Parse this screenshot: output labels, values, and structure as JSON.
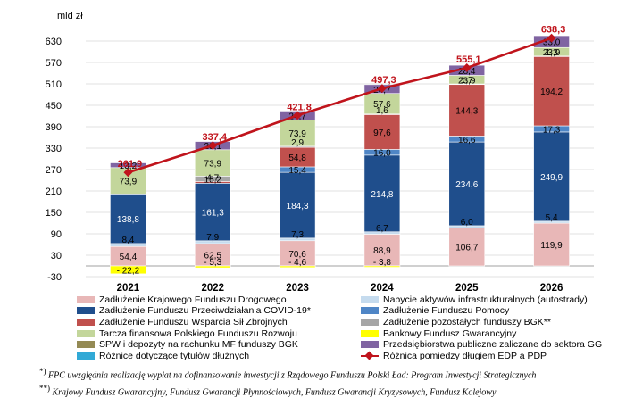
{
  "chart_data": {
    "type": "bar",
    "stacked": true,
    "ylabel": "mld zł",
    "ylim": [
      -30,
      660
    ],
    "yticks": [
      -30,
      30,
      90,
      150,
      210,
      270,
      330,
      390,
      450,
      510,
      570,
      630
    ],
    "grid": true,
    "categories": [
      "2021",
      "2022",
      "2023",
      "2024",
      "2025",
      "2026"
    ],
    "series": [
      {
        "name": "Zadłużenie Krajowego Funduszu Drogowego",
        "color": "#e8b7b7",
        "values": [
          54.4,
          62.5,
          70.6,
          88.9,
          106.7,
          119.9
        ]
      },
      {
        "name": "Nabycie aktywów infrastrukturalnych (autostrady)",
        "color": "#c5dbee",
        "values": [
          8.4,
          7.9,
          7.3,
          6.7,
          6.0,
          5.4
        ]
      },
      {
        "name": "Zadłużenie Funduszu Przeciwdziałania COVID-19*",
        "color": "#1f4e8c",
        "values": [
          138.8,
          161.3,
          184.3,
          214.8,
          234.6,
          249.9
        ]
      },
      {
        "name": "Zadłużenie Funduszu Pomocy",
        "color": "#4f86c6",
        "values": [
          0,
          0,
          15.4,
          16.0,
          16.6,
          17.3
        ]
      },
      {
        "name": "Zadłużenie Funduszu Wsparcia Sił Zbrojnych",
        "color": "#c0504d",
        "values": [
          0,
          4.7,
          54.8,
          97.6,
          144.3,
          194.2
        ]
      },
      {
        "name": "Zadłużenie pozostałych funduszy BGK**",
        "color": "#a6a6a6",
        "values": [
          0,
          15.2,
          2.9,
          1.6,
          1.7,
          1.3
        ]
      },
      {
        "name": "Tarcza finansowa Polskiego Funduszu Rozwoju",
        "color": "#c3d69b",
        "values": [
          73.9,
          73.9,
          73.9,
          57.6,
          23.9,
          23.9
        ]
      },
      {
        "name": "Bankowy Fundusz Gwarancyjny",
        "color": "#ffff00",
        "values": [
          -22.2,
          -5.3,
          -4.6,
          -3.8,
          0,
          0
        ]
      },
      {
        "name": "SPW i depozyty na rachunku MF funduszy BGK",
        "color": "#948a54",
        "values": [
          0,
          0,
          0,
          0,
          0,
          0
        ]
      },
      {
        "name": "Przedsiębiorstwa publiczne zaliczane do sektora GG",
        "color": "#8064a2",
        "values": [
          13.2,
          23.1,
          24.7,
          24.7,
          28.4,
          33.0
        ]
      },
      {
        "name": "Różnice dotyczące tytułów dłużnych",
        "color": "#31a9d6",
        "values": [
          0,
          0,
          0,
          0,
          0,
          0
        ]
      }
    ],
    "line": {
      "name": "Różnica pomiedzy długiem EDP a PDP",
      "color": "#c0141c",
      "values": [
        261.9,
        337.4,
        421.8,
        497.3,
        555.1,
        638.3
      ]
    },
    "data_labels": [
      [
        [
          "54,4",
          54.4
        ],
        [
          "8,4",
          8.4
        ],
        [
          "138,8",
          138.8
        ],
        [
          "73,9",
          73.9
        ],
        [
          "- 22,2",
          -22.2
        ],
        [
          "13,2",
          13.2
        ]
      ],
      [
        [
          "62,5",
          62.5
        ],
        [
          "7,9",
          7.9
        ],
        [
          "161,3",
          161.3
        ],
        [
          "4,7",
          4.7
        ],
        [
          "15,2",
          15.2
        ],
        [
          "73,9",
          73.9
        ],
        [
          "- 5,3",
          -5.3
        ],
        [
          "23,1",
          23.1
        ]
      ],
      [
        [
          "70,6",
          70.6
        ],
        [
          "7,3",
          7.3
        ],
        [
          "184,3",
          184.3
        ],
        [
          "15,4",
          15.4
        ],
        [
          "54,8",
          54.8
        ],
        [
          "2,9",
          2.9
        ],
        [
          "73,9",
          73.9
        ],
        [
          "- 4,6",
          -4.6
        ],
        [
          "24,7",
          24.7
        ]
      ],
      [
        [
          "88,9",
          88.9
        ],
        [
          "6,7",
          6.7
        ],
        [
          "214,8",
          214.8
        ],
        [
          "16,0",
          16.0
        ],
        [
          "97,6",
          97.6
        ],
        [
          "1,6",
          1.6
        ],
        [
          "57,6",
          57.6
        ],
        [
          "- 3,8",
          -3.8
        ],
        [
          "24,7",
          24.7
        ]
      ],
      [
        [
          "106,7",
          106.7
        ],
        [
          "6,0",
          6.0
        ],
        [
          "234,6",
          234.6
        ],
        [
          "16,6",
          16.6
        ],
        [
          "144,3",
          144.3
        ],
        [
          "1,7",
          1.7
        ],
        [
          "23,9",
          23.9
        ],
        [
          "28,4",
          28.4
        ]
      ],
      [
        [
          "119,9",
          119.9
        ],
        [
          "5,4",
          5.4
        ],
        [
          "249,9",
          249.9
        ],
        [
          "17,3",
          17.3
        ],
        [
          "194,2",
          194.2
        ],
        [
          "1,3",
          1.3
        ],
        [
          "23,9",
          23.9
        ],
        [
          "33,0",
          33.0
        ]
      ]
    ],
    "line_labels": [
      "261,9",
      "337,4",
      "421,8",
      "497,3",
      "555,1",
      "638,3"
    ],
    "legend": [
      {
        "label": "Zadłużenie Krajowego Funduszu Drogowego",
        "color": "#e8b7b7"
      },
      {
        "label": "Nabycie aktywów infrastrukturalnych (autostrady)",
        "color": "#c5dbee"
      },
      {
        "label": "Zadłużenie Funduszu Przeciwdziałania COVID-19*",
        "color": "#1f4e8c"
      },
      {
        "label": "Zadłużenie Funduszu Pomocy",
        "color": "#4f86c6"
      },
      {
        "label": "Zadłużenie Funduszu Wsparcia Sił Zbrojnych",
        "color": "#c0504d"
      },
      {
        "label": "Zadłużenie pozostałych funduszy BGK**",
        "color": "#a6a6a6"
      },
      {
        "label": "Tarcza finansowa Polskiego Funduszu Rozwoju",
        "color": "#c3d69b"
      },
      {
        "label": "Bankowy Fundusz Gwarancyjny",
        "color": "#ffff00"
      },
      {
        "label": "SPW i depozyty na rachunku MF funduszy BGK",
        "color": "#948a54"
      },
      {
        "label": "Przedsiębiorstwa publiczne zaliczane do sektora GG",
        "color": "#8064a2"
      },
      {
        "label": "Różnice dotyczące tytułów dłużnych",
        "color": "#31a9d6"
      },
      {
        "label": "Różnica pomiedzy długiem EDP a PDP",
        "color": "#c0141c",
        "line": true
      }
    ]
  },
  "footnotes": {
    "note1_mark": "*)",
    "note1_text": "FPC uwzględnia realizację wypłat na dofinansowanie inwestycji z Rządowego Funduszu Polski Ład: Program Inwestycji Strategicznych",
    "note2_mark": "**)",
    "note2_text": "Krajowy Fundusz Gwarancyjny, Fundusz Gwarancji Płynnościowych, Fundusz Gwarancji Kryzysowych, Fundusz Kolejowy"
  }
}
